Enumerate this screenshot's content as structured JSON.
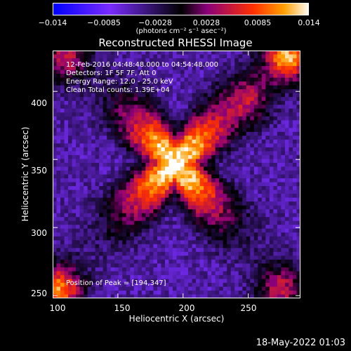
{
  "colorbar": {
    "ticks": [
      "−0.014",
      "−0.0085",
      "−0.0028",
      "0.0028",
      "0.0085",
      "0.014"
    ],
    "units": "(photons cm⁻² s⁻¹ asec⁻²)",
    "colors": [
      "#0000ff",
      "#7a2cff",
      "#000000",
      "#8a007a",
      "#ff3000",
      "#ffa000",
      "#ffffff"
    ]
  },
  "chart_data": {
    "type": "heatmap",
    "title": "Reconstructed RHESSI Image",
    "xlabel": "Heliocentric X (arcsec)",
    "ylabel": "Heliocentric Y (arcsec)",
    "xlim": [
      100,
      290
    ],
    "ylim": [
      248,
      430
    ],
    "xticks": [
      100,
      150,
      200,
      250
    ],
    "yticks": [
      250,
      300,
      350,
      400
    ],
    "zlim": [
      -0.014,
      0.014
    ],
    "peak": [
      194,
      347
    ],
    "annotations": [
      "12-Feb-2016 04:48:48.000 to 04:54:48.000",
      "Detectors: 1F 5F 7F, Att 0",
      "Energy Range: 12.0 - 25.0 keV",
      "Clean      Total counts: 1.39E+04"
    ],
    "peak_label": "Position of Peak = [194,347]"
  },
  "timestamp": "18-May-2022 01:03"
}
